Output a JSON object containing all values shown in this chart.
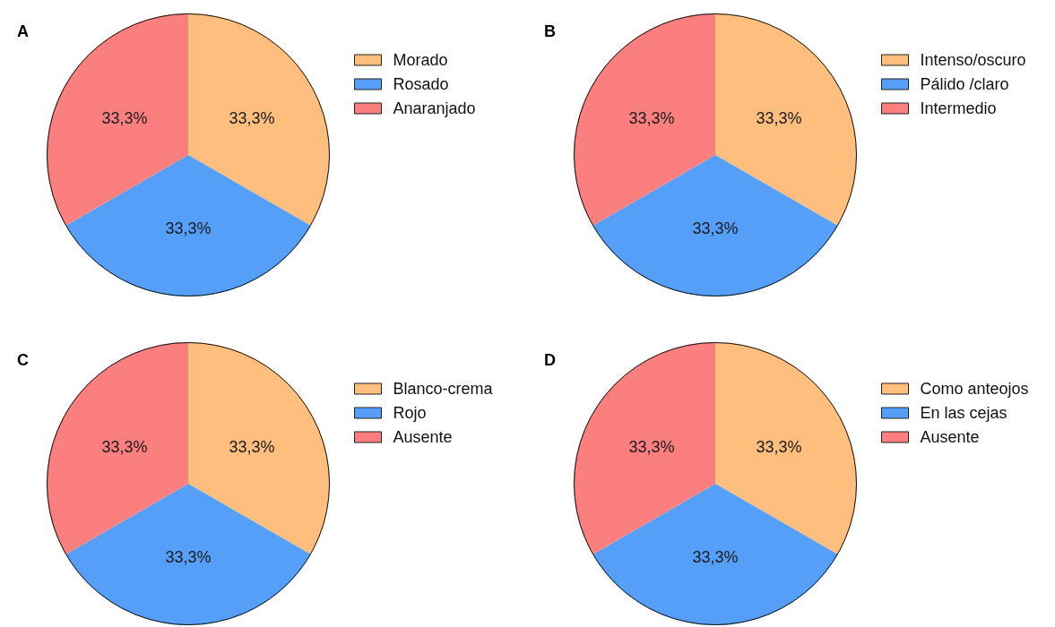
{
  "chart_data": [
    {
      "type": "pie",
      "title": "A",
      "categories": [
        "Morado",
        "Rosado",
        "Anaranjado"
      ],
      "values": [
        33.3,
        33.3,
        33.3
      ],
      "colors": [
        "#fdbe7e",
        "#559ff9",
        "#fc7f7f"
      ],
      "value_labels": [
        "33,3%",
        "33,3%",
        "33,3%"
      ],
      "legend": "top right"
    },
    {
      "type": "pie",
      "title": "B",
      "categories": [
        "Intenso/oscuro",
        "Pálido /claro",
        "Intermedio"
      ],
      "values": [
        33.3,
        33.3,
        33.3
      ],
      "colors": [
        "#fdbe7e",
        "#559ff9",
        "#fc7f7f"
      ],
      "value_labels": [
        "33,3%",
        "33,3%",
        "33,3%"
      ],
      "legend": "top right"
    },
    {
      "type": "pie",
      "title": "C",
      "categories": [
        "Blanco-crema",
        "Rojo",
        "Ausente"
      ],
      "values": [
        33.3,
        33.3,
        33.3
      ],
      "colors": [
        "#fdbe7e",
        "#559ff9",
        "#fc7f7f"
      ],
      "value_labels": [
        "33,3%",
        "33,3%",
        "33,3%"
      ],
      "legend": "top right"
    },
    {
      "type": "pie",
      "title": "D",
      "categories": [
        "Como anteojos",
        "En las cejas",
        "Ausente"
      ],
      "values": [
        33.3,
        33.3,
        33.3
      ],
      "colors": [
        "#fdbe7e",
        "#559ff9",
        "#fc7f7f"
      ],
      "value_labels": [
        "33,3%",
        "33,3%",
        "33,3%"
      ],
      "legend": "top right"
    }
  ]
}
